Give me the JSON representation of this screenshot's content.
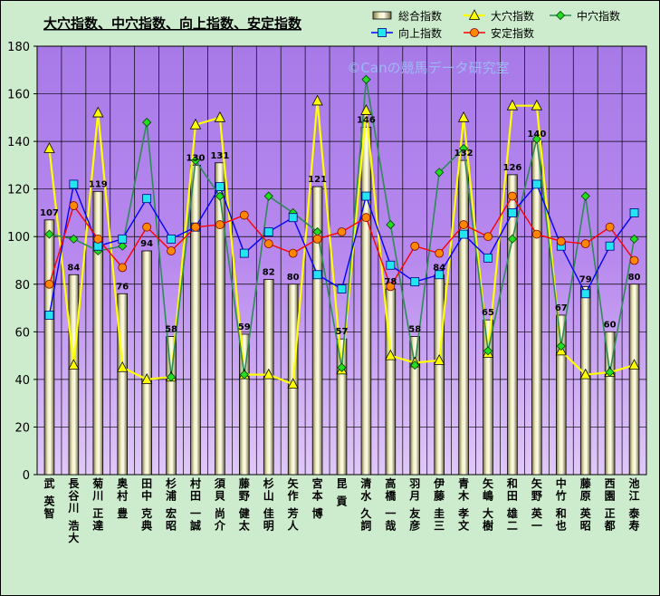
{
  "chart_data": {
    "type": "bar",
    "title": "大穴指数、中穴指数、向上指数、安定指数",
    "watermark": "©Canの競馬データ研究室",
    "ylim": [
      0,
      180
    ],
    "yticks": [
      0,
      20,
      40,
      60,
      80,
      100,
      120,
      140,
      160,
      180
    ],
    "grid": true,
    "legend_position": "top-right",
    "categories": [
      "武 英智",
      "長谷川 浩大",
      "菊川 正達",
      "奥村 豊",
      "田中 克典",
      "杉浦 宏昭",
      "村田 一誠",
      "須貝 尚介",
      "藤野 健太",
      "杉山 佳明",
      "矢作 芳人",
      "宮本 博",
      "昆 貢",
      "清水 久詞",
      "高橋 一哉",
      "羽月 友彦",
      "伊藤 圭三",
      "青木 孝文",
      "矢嶋 大樹",
      "和田 雄二",
      "矢野 英一",
      "中竹 和也",
      "藤原 英昭",
      "西園 正都",
      "池江 泰寿"
    ],
    "colors": {
      "bar": "#f2efc4",
      "oana": "#ffff00",
      "chuana": "#2e8b57",
      "kojo": "#0000ff",
      "antei": "#ff0000",
      "plot_bg": "#b889ee"
    },
    "series": [
      {
        "name": "総合指数",
        "type": "bar",
        "values": [
          107,
          84,
          119,
          76,
          94,
          58,
          130,
          131,
          59,
          82,
          80,
          121,
          57,
          146,
          78,
          58,
          84,
          132,
          65,
          126,
          140,
          67,
          79,
          60,
          80
        ]
      },
      {
        "name": "大穴指数",
        "type": "line",
        "values": [
          137,
          46,
          152,
          45,
          40,
          41,
          147,
          150,
          42,
          42,
          38,
          157,
          44,
          153,
          50,
          47,
          48,
          150,
          51,
          155,
          155,
          52,
          42,
          43,
          46
        ]
      },
      {
        "name": "中穴指数",
        "type": "line",
        "values": [
          101,
          99,
          94,
          96,
          148,
          41,
          132,
          117,
          42,
          117,
          110,
          102,
          45,
          166,
          105,
          46,
          127,
          137,
          52,
          99,
          141,
          54,
          117,
          43,
          99
        ]
      },
      {
        "name": "向上指数",
        "type": "line",
        "values": [
          67,
          122,
          96,
          99,
          116,
          99,
          104,
          121,
          93,
          102,
          108,
          84,
          78,
          117,
          88,
          81,
          84,
          101,
          91,
          110,
          122,
          96,
          76,
          96,
          110
        ]
      },
      {
        "name": "安定指数",
        "type": "line",
        "values": [
          80,
          113,
          99,
          87,
          104,
          94,
          104,
          105,
          109,
          97,
          93,
          99,
          102,
          108,
          79,
          96,
          93,
          105,
          100,
          117,
          101,
          98,
          97,
          104,
          90
        ]
      }
    ]
  }
}
